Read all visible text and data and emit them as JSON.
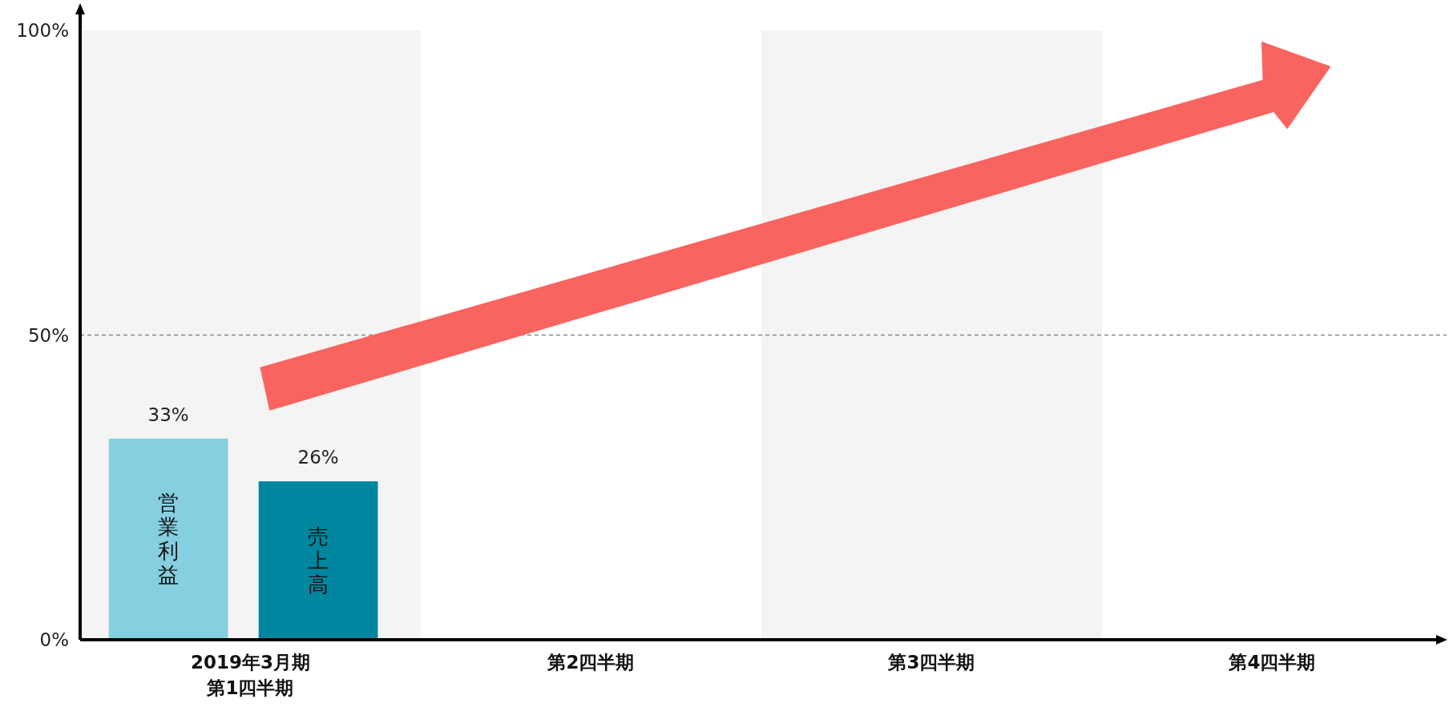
{
  "chart_data": {
    "type": "bar",
    "categories": [
      "2019年3月期第1四半期",
      "第2四半期",
      "第3四半期",
      "第4四半期"
    ],
    "series": [
      {
        "name": "営業利益",
        "color": "#86cfe0",
        "values": [
          33,
          null,
          null,
          null
        ]
      },
      {
        "name": "売上高",
        "color": "#00869e",
        "values": [
          26,
          null,
          null,
          null
        ]
      }
    ],
    "ylim": [
      0,
      100
    ],
    "yticks": [
      {
        "value": 0,
        "label": "0%"
      },
      {
        "value": 50,
        "label": "50%"
      },
      {
        "value": 100,
        "label": "100%"
      }
    ],
    "value_labels": [
      [
        "33%",
        null,
        null,
        null
      ],
      [
        "26%",
        null,
        null,
        null
      ]
    ],
    "ref_lines": [
      {
        "axis": "y",
        "value": 50,
        "color": "#888888",
        "line_style": "dashed"
      }
    ],
    "bands": [
      {
        "axis": "x",
        "from": "2019年3月期第1四半期",
        "to": "2019年3月期第1四半期",
        "color": "#f4f4f4"
      },
      {
        "axis": "x",
        "from": "第3四半期",
        "to": "第3四半期",
        "color": "#f4f4f4"
      }
    ]
  }
}
